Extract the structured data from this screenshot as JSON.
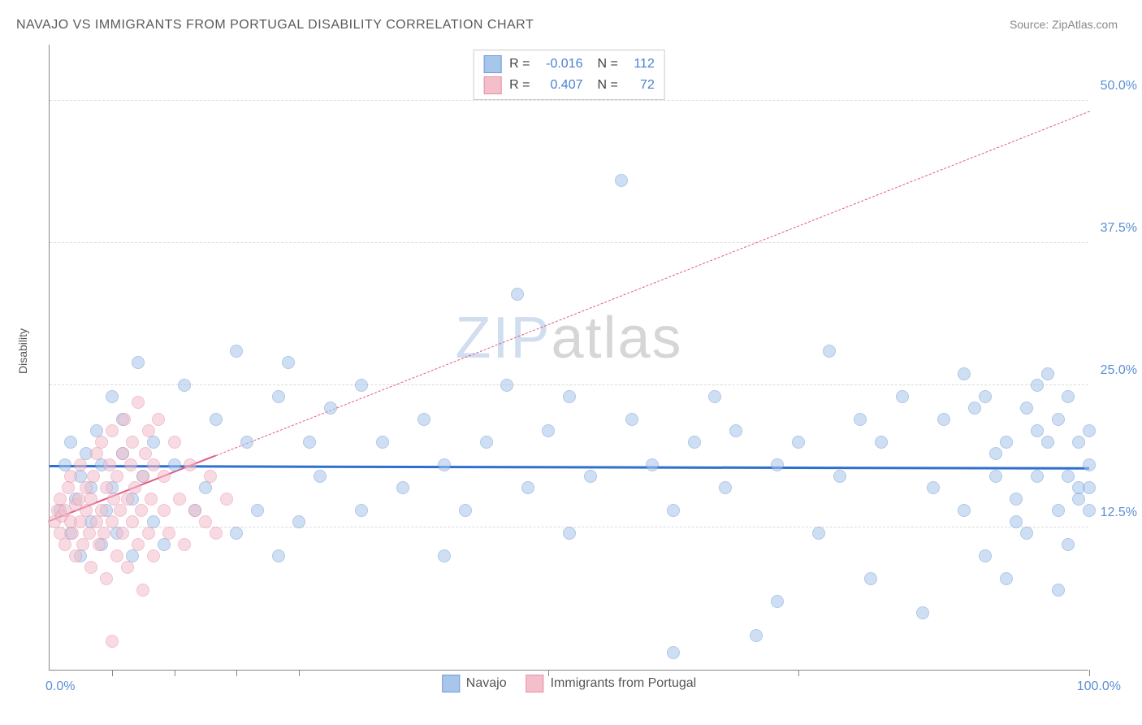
{
  "title": "NAVAJO VS IMMIGRANTS FROM PORTUGAL DISABILITY CORRELATION CHART",
  "source": "Source: ZipAtlas.com",
  "ylabel": "Disability",
  "watermark": {
    "part1": "ZIP",
    "part2": "atlas"
  },
  "chart": {
    "type": "scatter",
    "xlim": [
      0,
      100
    ],
    "ylim": [
      0,
      55
    ],
    "yticks": [
      {
        "v": 12.5,
        "label": "12.5%"
      },
      {
        "v": 25.0,
        "label": "25.0%"
      },
      {
        "v": 37.5,
        "label": "37.5%"
      },
      {
        "v": 50.0,
        "label": "50.0%"
      }
    ],
    "xtick_positions": [
      6,
      12,
      18,
      24,
      48,
      72,
      100
    ],
    "x_axis_labels": {
      "left": "0.0%",
      "right": "100.0%"
    },
    "background_color": "#ffffff",
    "grid_color": "#e0e0e0",
    "marker_radius": 8,
    "marker_opacity": 0.55,
    "marker_stroke_width": 1,
    "series": [
      {
        "name": "Navajo",
        "fill": "#a8c6ea",
        "stroke": "#6f9bd8",
        "R": "-0.016",
        "N": "112",
        "trend": {
          "x1": 0,
          "y1": 17.8,
          "x2": 100,
          "y2": 17.6,
          "solid_to_x": 100,
          "color": "#2e6fd0",
          "width": 3
        },
        "points": [
          [
            1,
            14
          ],
          [
            1.5,
            18
          ],
          [
            2,
            12
          ],
          [
            2,
            20
          ],
          [
            2.5,
            15
          ],
          [
            3,
            17
          ],
          [
            3,
            10
          ],
          [
            3.5,
            19
          ],
          [
            4,
            13
          ],
          [
            4,
            16
          ],
          [
            4.5,
            21
          ],
          [
            5,
            11
          ],
          [
            5,
            18
          ],
          [
            5.5,
            14
          ],
          [
            6,
            24
          ],
          [
            6,
            16
          ],
          [
            6.5,
            12
          ],
          [
            7,
            19
          ],
          [
            7,
            22
          ],
          [
            8,
            15
          ],
          [
            8,
            10
          ],
          [
            8.5,
            27
          ],
          [
            9,
            17
          ],
          [
            10,
            13
          ],
          [
            10,
            20
          ],
          [
            11,
            11
          ],
          [
            12,
            18
          ],
          [
            13,
            25
          ],
          [
            14,
            14
          ],
          [
            15,
            16
          ],
          [
            16,
            22
          ],
          [
            18,
            28
          ],
          [
            18,
            12
          ],
          [
            19,
            20
          ],
          [
            20,
            14
          ],
          [
            22,
            24
          ],
          [
            22,
            10
          ],
          [
            23,
            27
          ],
          [
            24,
            13
          ],
          [
            25,
            20
          ],
          [
            26,
            17
          ],
          [
            27,
            23
          ],
          [
            30,
            25
          ],
          [
            30,
            14
          ],
          [
            32,
            20
          ],
          [
            34,
            16
          ],
          [
            36,
            22
          ],
          [
            38,
            10
          ],
          [
            38,
            18
          ],
          [
            40,
            14
          ],
          [
            42,
            20
          ],
          [
            44,
            25
          ],
          [
            45,
            33
          ],
          [
            46,
            16
          ],
          [
            48,
            21
          ],
          [
            50,
            24
          ],
          [
            50,
            12
          ],
          [
            52,
            17
          ],
          [
            55,
            43
          ],
          [
            56,
            22
          ],
          [
            58,
            18
          ],
          [
            60,
            1.5
          ],
          [
            60,
            14
          ],
          [
            62,
            20
          ],
          [
            64,
            24
          ],
          [
            65,
            16
          ],
          [
            66,
            21
          ],
          [
            68,
            3
          ],
          [
            70,
            18
          ],
          [
            70,
            6
          ],
          [
            72,
            20
          ],
          [
            74,
            12
          ],
          [
            75,
            28
          ],
          [
            76,
            17
          ],
          [
            78,
            22
          ],
          [
            79,
            8
          ],
          [
            80,
            20
          ],
          [
            82,
            24
          ],
          [
            84,
            5
          ],
          [
            85,
            16
          ],
          [
            86,
            22
          ],
          [
            88,
            14
          ],
          [
            88,
            26
          ],
          [
            90,
            10
          ],
          [
            90,
            24
          ],
          [
            91,
            17
          ],
          [
            92,
            8
          ],
          [
            92,
            20
          ],
          [
            93,
            15
          ],
          [
            94,
            23
          ],
          [
            94,
            12
          ],
          [
            95,
            25
          ],
          [
            95,
            17
          ],
          [
            96,
            20
          ],
          [
            96,
            26
          ],
          [
            97,
            7
          ],
          [
            97,
            14
          ],
          [
            97,
            22
          ],
          [
            98,
            17
          ],
          [
            98,
            11
          ],
          [
            98,
            24
          ],
          [
            99,
            15
          ],
          [
            99,
            20
          ],
          [
            99,
            16
          ],
          [
            100,
            18
          ],
          [
            100,
            14
          ],
          [
            100,
            21
          ],
          [
            100,
            16
          ],
          [
            95,
            21
          ],
          [
            93,
            13
          ],
          [
            91,
            19
          ],
          [
            89,
            23
          ]
        ]
      },
      {
        "name": "Immigrants from Portugal",
        "fill": "#f4bfcb",
        "stroke": "#e78fa8",
        "R": "0.407",
        "N": "72",
        "trend": {
          "x1": 0,
          "y1": 13.0,
          "x2": 100,
          "y2": 49.0,
          "solid_to_x": 16,
          "color": "#e05a85",
          "width": 2.5
        },
        "points": [
          [
            0.5,
            13
          ],
          [
            0.8,
            14
          ],
          [
            1,
            12
          ],
          [
            1,
            15
          ],
          [
            1.2,
            13.5
          ],
          [
            1.5,
            14
          ],
          [
            1.5,
            11
          ],
          [
            1.8,
            16
          ],
          [
            2,
            13
          ],
          [
            2,
            17
          ],
          [
            2.2,
            12
          ],
          [
            2.5,
            14.5
          ],
          [
            2.5,
            10
          ],
          [
            2.8,
            15
          ],
          [
            3,
            13
          ],
          [
            3,
            18
          ],
          [
            3.2,
            11
          ],
          [
            3.5,
            16
          ],
          [
            3.5,
            14
          ],
          [
            3.8,
            12
          ],
          [
            4,
            15
          ],
          [
            4,
            9
          ],
          [
            4.2,
            17
          ],
          [
            4.5,
            13
          ],
          [
            4.5,
            19
          ],
          [
            4.8,
            11
          ],
          [
            5,
            14
          ],
          [
            5,
            20
          ],
          [
            5.2,
            12
          ],
          [
            5.5,
            16
          ],
          [
            5.5,
            8
          ],
          [
            5.8,
            18
          ],
          [
            6,
            13
          ],
          [
            6,
            21
          ],
          [
            6.2,
            15
          ],
          [
            6.5,
            10
          ],
          [
            6.5,
            17
          ],
          [
            6.8,
            14
          ],
          [
            7,
            19
          ],
          [
            7,
            12
          ],
          [
            7.2,
            22
          ],
          [
            7.5,
            15
          ],
          [
            7.5,
            9
          ],
          [
            7.8,
            18
          ],
          [
            8,
            13
          ],
          [
            8,
            20
          ],
          [
            8.2,
            16
          ],
          [
            8.5,
            11
          ],
          [
            8.5,
            23.5
          ],
          [
            8.8,
            14
          ],
          [
            9,
            17
          ],
          [
            9,
            7
          ],
          [
            9.2,
            19
          ],
          [
            9.5,
            12
          ],
          [
            9.5,
            21
          ],
          [
            9.8,
            15
          ],
          [
            10,
            18
          ],
          [
            10,
            10
          ],
          [
            10.5,
            22
          ],
          [
            11,
            14
          ],
          [
            11,
            17
          ],
          [
            11.5,
            12
          ],
          [
            12,
            20
          ],
          [
            12.5,
            15
          ],
          [
            13,
            11
          ],
          [
            13.5,
            18
          ],
          [
            14,
            14
          ],
          [
            15,
            13
          ],
          [
            15.5,
            17
          ],
          [
            16,
            12
          ],
          [
            17,
            15
          ],
          [
            6,
            2.5
          ]
        ]
      }
    ]
  },
  "bottom_legend": [
    {
      "label": "Navajo",
      "fill": "#a8c6ea",
      "stroke": "#6f9bd8"
    },
    {
      "label": "Immigrants from Portugal",
      "fill": "#f4bfcb",
      "stroke": "#e78fa8"
    }
  ]
}
